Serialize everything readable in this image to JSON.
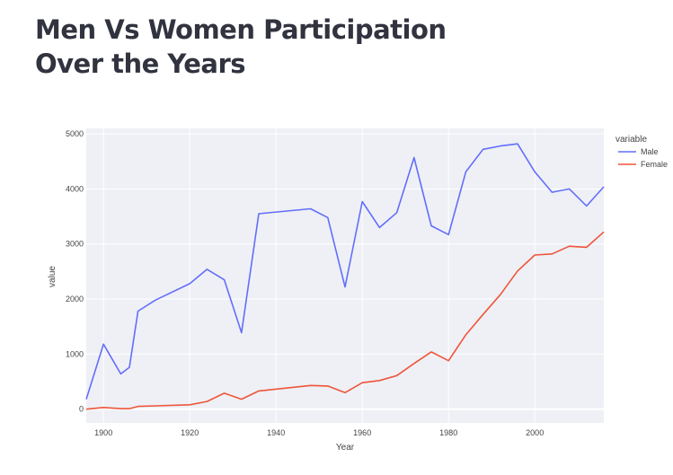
{
  "page": {
    "title": "Men Vs Women Participation Over the Years"
  },
  "chart_data": {
    "type": "line",
    "title": "",
    "xlabel": "Year",
    "ylabel": "value",
    "xlim": [
      1896,
      2016
    ],
    "ylim": [
      -250,
      5100
    ],
    "x_ticks": [
      1900,
      1920,
      1940,
      1960,
      1980,
      2000
    ],
    "y_ticks": [
      0,
      1000,
      2000,
      3000,
      4000,
      5000
    ],
    "grid": true,
    "legend": {
      "title": "variable",
      "placement": "top-right"
    },
    "colors": {
      "plot_background": "#eef0f5",
      "grid": "#ffffff"
    },
    "series": [
      {
        "name": "Male",
        "color": "#636efa",
        "x": [
          1896,
          1900,
          1904,
          1906,
          1908,
          1912,
          1920,
          1924,
          1928,
          1932,
          1936,
          1948,
          1952,
          1956,
          1960,
          1964,
          1968,
          1972,
          1976,
          1980,
          1984,
          1988,
          1992,
          1996,
          2000,
          2004,
          2008,
          2012,
          2016
        ],
        "values": [
          180,
          1180,
          640,
          760,
          1780,
          1980,
          2280,
          2540,
          2350,
          1390,
          3550,
          3640,
          3480,
          2220,
          3770,
          3300,
          3570,
          4570,
          3330,
          3170,
          4310,
          4720,
          4780,
          4820,
          4310,
          3940,
          4000,
          3690,
          4040
        ]
      },
      {
        "name": "Female",
        "color": "#ef553b",
        "x": [
          1896,
          1900,
          1904,
          1906,
          1908,
          1912,
          1920,
          1924,
          1928,
          1932,
          1936,
          1948,
          1952,
          1956,
          1960,
          1964,
          1968,
          1972,
          1976,
          1980,
          1984,
          1988,
          1992,
          1996,
          2000,
          2004,
          2008,
          2012,
          2016
        ],
        "values": [
          0,
          30,
          10,
          10,
          50,
          60,
          80,
          140,
          290,
          180,
          330,
          430,
          420,
          300,
          480,
          520,
          610,
          830,
          1040,
          880,
          1350,
          1720,
          2080,
          2510,
          2800,
          2820,
          2960,
          2940,
          3220
        ]
      }
    ]
  }
}
